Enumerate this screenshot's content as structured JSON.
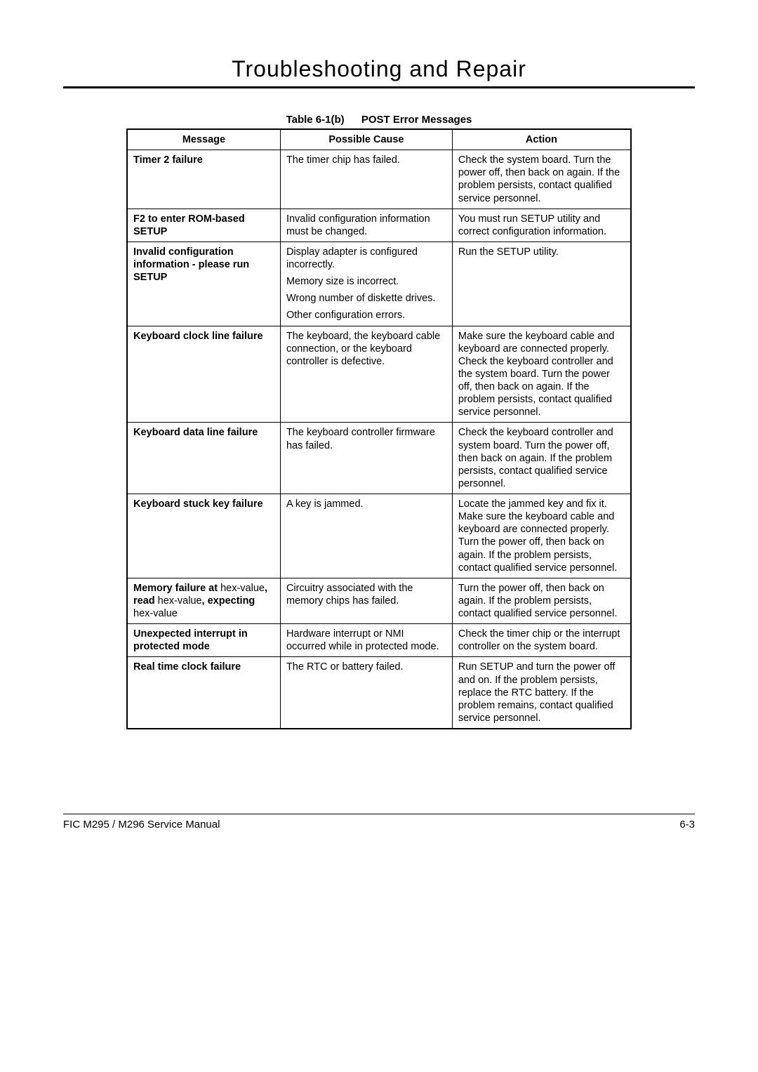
{
  "page": {
    "title": "Troubleshooting and Repair",
    "caption_label": "Table 6-1(b)",
    "caption_title": "POST Error Messages",
    "footer_left": "FIC M295 / M296 Service Manual",
    "footer_right": "6-3"
  },
  "table": {
    "headers": {
      "c1": "Message",
      "c2": "Possible Cause",
      "c3": "Action"
    },
    "rows": [
      {
        "message": [
          {
            "b": true,
            "t": "Timer 2 failure"
          }
        ],
        "cause": [
          "The timer chip has failed."
        ],
        "action": "Check the system board. Turn the power off, then back on again. If the problem persists, contact qualified service personnel."
      },
      {
        "message": [
          {
            "b": true,
            "t": "F2 to enter ROM-based SETUP"
          }
        ],
        "cause": [
          "Invalid configuration information must be changed."
        ],
        "action": "You must run SETUP utility and correct configuration information."
      },
      {
        "message": [
          {
            "b": true,
            "t": "Invalid configuration information - please run SETUP"
          }
        ],
        "cause": [
          "Display adapter is configured incorrectly.",
          "Memory size is incorrect.",
          "Wrong number of diskette drives.",
          "Other configuration errors."
        ],
        "action": "Run the SETUP utility."
      },
      {
        "message": [
          {
            "b": true,
            "t": "Keyboard clock line failure"
          }
        ],
        "cause": [
          "The keyboard, the keyboard cable connection, or the keyboard controller is defective."
        ],
        "action": "Make sure the keyboard cable and keyboard are connected properly. Check the keyboard controller and the system board. Turn the power off, then back on again. If the problem persists, contact qualified service personnel."
      },
      {
        "message": [
          {
            "b": true,
            "t": "Keyboard data line failure"
          }
        ],
        "cause": [
          "The keyboard controller firmware has failed."
        ],
        "action": "Check the keyboard controller and system board. Turn the power off,  then back on again. If the problem persists, contact qualified service personnel."
      },
      {
        "message": [
          {
            "b": true,
            "t": "Keyboard stuck key failure"
          }
        ],
        "cause": [
          "A key is jammed."
        ],
        "action": "Locate the jammed key and fix it. Make sure the keyboard cable and keyboard are connected properly. Turn the power off, then back on again. If the problem persists, contact qualified service personnel."
      },
      {
        "message": [
          {
            "b": true,
            "t": "Memory failure at "
          },
          {
            "b": false,
            "t": "hex-value"
          },
          {
            "b": true,
            "t": ", read "
          },
          {
            "b": false,
            "t": "hex-value"
          },
          {
            "b": true,
            "t": ", expecting "
          },
          {
            "b": false,
            "t": "hex-value"
          }
        ],
        "cause": [
          "Circuitry associated with the memory chips has failed."
        ],
        "action": "Turn the power off, then back on again. If the problem persists, contact qualified service personnel."
      },
      {
        "message": [
          {
            "b": true,
            "t": "Unexpected interrupt in protected mode"
          }
        ],
        "cause": [
          "Hardware interrupt or NMI occurred while in protected mode."
        ],
        "action": "Check the timer chip or the interrupt controller on the system board."
      },
      {
        "message": [
          {
            "b": true,
            "t": "Real time clock failure"
          }
        ],
        "cause": [
          "The RTC or battery failed."
        ],
        "action": "Run SETUP and turn the power off and on. If the problem persists, replace the RTC battery. If the problem remains, contact qualified service personnel."
      }
    ]
  }
}
